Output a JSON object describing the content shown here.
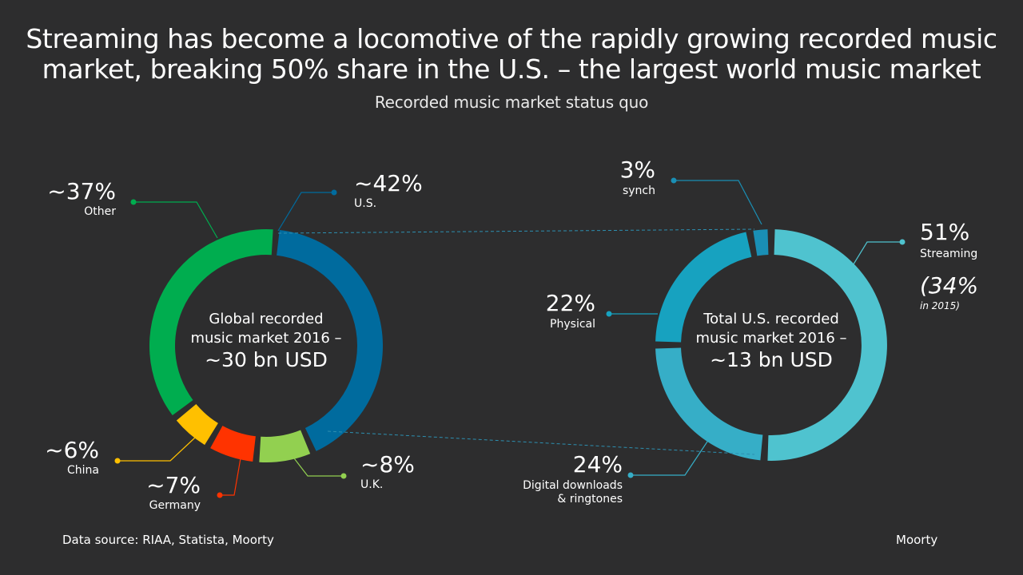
{
  "title": {
    "line1": "Streaming has become a locomotive of the rapidly growing recorded music",
    "line2": "market, breaking 50% share in the U.S. – the largest world music market"
  },
  "subtitle": "Recorded music market status quo",
  "footer": {
    "source": "Data source: RIAA, Statista,  Moorty",
    "brand": "Moorty"
  },
  "colors": {
    "background": "#2d2d2e",
    "us": "#006b9e",
    "other": "#00ad4f",
    "china": "#ffc000",
    "germany": "#ff3300",
    "uk": "#92d050",
    "streaming": "#4fc3cf",
    "physical": "#17a2c0",
    "digital": "#36aec7",
    "synch": "#1a8fb5",
    "dashed": "#2d8fb0"
  },
  "chart_data": [
    {
      "type": "pie",
      "variant": "donut",
      "center_label": [
        "Global recorded",
        "music market 2016 –",
        "~30 bn USD"
      ],
      "slices": [
        {
          "key": "us",
          "label": "U.S.",
          "value_label": "~42%",
          "value": 42
        },
        {
          "key": "uk",
          "label": "U.K.",
          "value_label": "~8%",
          "value": 8
        },
        {
          "key": "germany",
          "label": "Germany",
          "value_label": "~7%",
          "value": 7
        },
        {
          "key": "china",
          "label": "China",
          "value_label": "~6%",
          "value": 6
        },
        {
          "key": "other",
          "label": "Other",
          "value_label": "~37%",
          "value": 37
        }
      ]
    },
    {
      "type": "pie",
      "variant": "donut",
      "center_label": [
        "Total U.S. recorded",
        "music market 2016 –",
        "~13 bn USD"
      ],
      "slices": [
        {
          "key": "streaming",
          "label": "Streaming",
          "value_label": "51%",
          "value": 51,
          "note_value": "(34%",
          "note_text": "in 2015)"
        },
        {
          "key": "digital",
          "label": "Digital downloads & ringtones",
          "label_lines": [
            "Digital downloads",
            "& ringtones"
          ],
          "value_label": "24%",
          "value": 24
        },
        {
          "key": "physical",
          "label": "Physical",
          "value_label": "22%",
          "value": 22
        },
        {
          "key": "synch",
          "label": "synch",
          "value_label": "3%",
          "value": 3
        }
      ]
    }
  ]
}
